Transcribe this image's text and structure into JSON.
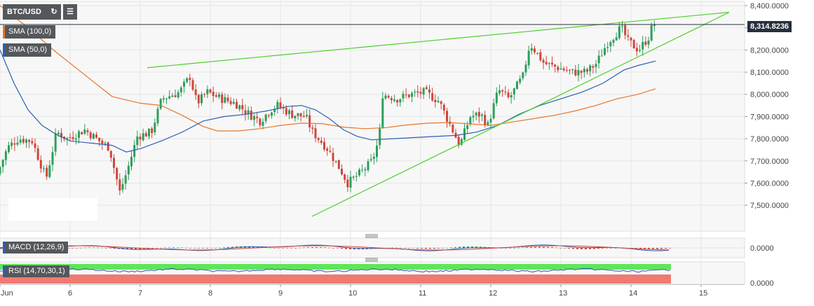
{
  "toolbar": {
    "symbol": "BTC/USD",
    "refresh_icon": "refresh-icon",
    "bars_icon": "indicator-bars-icon"
  },
  "legend": {
    "sma100": {
      "label": "SMA (100,0)",
      "color": "#e8762b"
    },
    "sma50": {
      "label": "SMA (50,0)",
      "color": "#2c5fb3"
    }
  },
  "price_tag": "8,314.8236",
  "macd_label": "MACD (12,26,9)",
  "rsi_label": "RSI (14,70,30,1)",
  "colors": {
    "bull": "#2e9e5b",
    "bear": "#d0463c",
    "trend": "#4ccf2a",
    "macd": "#2c5fb3",
    "signal": "#d0463c"
  },
  "chart_data": [
    {
      "type": "candlestick",
      "x_ticks": [
        "Jun",
        "6",
        "7",
        "8",
        "9",
        "10",
        "11",
        "12",
        "13",
        "14",
        "15"
      ],
      "x_range": [
        5.0,
        15.3
      ],
      "y_ticks": [
        "8,400.0000",
        "8,300.0000",
        "8,200.0000",
        "8,100.0000",
        "8,000.0000",
        "7,900.0000",
        "7,800.0000",
        "7,700.0000",
        "7,600.0000",
        "7,500.0000"
      ],
      "ylim": [
        7450,
        8400
      ],
      "last_price": 8314.8236,
      "price_anchors": [
        [
          5.0,
          7640
        ],
        [
          5.15,
          7760
        ],
        [
          5.3,
          7800
        ],
        [
          5.5,
          7790
        ],
        [
          5.7,
          7620
        ],
        [
          5.85,
          7830
        ],
        [
          6.0,
          7800
        ],
        [
          6.25,
          7840
        ],
        [
          6.5,
          7780
        ],
        [
          6.6,
          7760
        ],
        [
          6.75,
          7560
        ],
        [
          6.85,
          7650
        ],
        [
          7.0,
          7810
        ],
        [
          7.2,
          7830
        ],
        [
          7.35,
          7980
        ],
        [
          7.6,
          8010
        ],
        [
          7.75,
          8080
        ],
        [
          7.85,
          7960
        ],
        [
          8.0,
          8010
        ],
        [
          8.2,
          7980
        ],
        [
          8.4,
          7960
        ],
        [
          8.6,
          7910
        ],
        [
          8.75,
          7880
        ],
        [
          8.9,
          7930
        ],
        [
          9.0,
          7950
        ],
        [
          9.2,
          7910
        ],
        [
          9.4,
          7900
        ],
        [
          9.5,
          7830
        ],
        [
          9.7,
          7760
        ],
        [
          9.9,
          7660
        ],
        [
          10.0,
          7600
        ],
        [
          10.2,
          7650
        ],
        [
          10.35,
          7700
        ],
        [
          10.45,
          7800
        ],
        [
          10.5,
          8000
        ],
        [
          10.7,
          7980
        ],
        [
          10.9,
          8000
        ],
        [
          11.1,
          8010
        ],
        [
          11.3,
          7970
        ],
        [
          11.45,
          7870
        ],
        [
          11.6,
          7770
        ],
        [
          11.75,
          7900
        ],
        [
          11.9,
          7910
        ],
        [
          12.0,
          7860
        ],
        [
          12.15,
          8020
        ],
        [
          12.3,
          7980
        ],
        [
          12.5,
          8080
        ],
        [
          12.6,
          8230
        ],
        [
          12.8,
          8140
        ],
        [
          13.0,
          8120
        ],
        [
          13.2,
          8100
        ],
        [
          13.4,
          8100
        ],
        [
          13.55,
          8140
        ],
        [
          13.7,
          8230
        ],
        [
          13.9,
          8300
        ],
        [
          14.0,
          8240
        ],
        [
          14.15,
          8200
        ],
        [
          14.3,
          8260
        ],
        [
          14.35,
          8315
        ]
      ],
      "sma50_anchors": [
        [
          5.0,
          8200
        ],
        [
          5.2,
          8050
        ],
        [
          5.4,
          7930
        ],
        [
          5.6,
          7860
        ],
        [
          5.8,
          7820
        ],
        [
          6.0,
          7790
        ],
        [
          6.3,
          7780
        ],
        [
          6.6,
          7770
        ],
        [
          6.8,
          7740
        ],
        [
          7.0,
          7755
        ],
        [
          7.3,
          7790
        ],
        [
          7.6,
          7830
        ],
        [
          7.9,
          7880
        ],
        [
          8.2,
          7900
        ],
        [
          8.5,
          7910
        ],
        [
          8.8,
          7925
        ],
        [
          9.1,
          7945
        ],
        [
          9.3,
          7950
        ],
        [
          9.5,
          7930
        ],
        [
          9.7,
          7890
        ],
        [
          9.9,
          7840
        ],
        [
          10.1,
          7810
        ],
        [
          10.3,
          7795
        ],
        [
          10.6,
          7800
        ],
        [
          10.9,
          7805
        ],
        [
          11.2,
          7810
        ],
        [
          11.5,
          7815
        ],
        [
          11.8,
          7830
        ],
        [
          12.1,
          7860
        ],
        [
          12.4,
          7910
        ],
        [
          12.7,
          7950
        ],
        [
          13.0,
          7980
        ],
        [
          13.3,
          8010
        ],
        [
          13.6,
          8050
        ],
        [
          13.9,
          8110
        ],
        [
          14.1,
          8130
        ],
        [
          14.35,
          8150
        ]
      ],
      "sma100_anchors": [
        [
          5.0,
          8400
        ],
        [
          5.4,
          8300
        ],
        [
          5.8,
          8190
        ],
        [
          6.2,
          8090
        ],
        [
          6.6,
          7990
        ],
        [
          7.0,
          7960
        ],
        [
          7.3,
          7950
        ],
        [
          7.6,
          7905
        ],
        [
          7.9,
          7855
        ],
        [
          8.1,
          7835
        ],
        [
          8.4,
          7835
        ],
        [
          8.7,
          7845
        ],
        [
          9.0,
          7860
        ],
        [
          9.3,
          7870
        ],
        [
          9.6,
          7868
        ],
        [
          9.9,
          7852
        ],
        [
          10.2,
          7845
        ],
        [
          10.5,
          7850
        ],
        [
          10.8,
          7862
        ],
        [
          11.1,
          7870
        ],
        [
          11.4,
          7873
        ],
        [
          11.7,
          7867
        ],
        [
          12.0,
          7860
        ],
        [
          12.3,
          7875
        ],
        [
          12.6,
          7890
        ],
        [
          12.9,
          7905
        ],
        [
          13.2,
          7925
        ],
        [
          13.5,
          7950
        ],
        [
          13.8,
          7980
        ],
        [
          14.1,
          8000
        ],
        [
          14.35,
          8025
        ]
      ],
      "trendlines": [
        {
          "from": [
            7.1,
            8120
          ],
          "to": [
            15.4,
            8370
          ]
        },
        {
          "from": [
            9.45,
            7450
          ],
          "to": [
            15.4,
            8370
          ]
        }
      ],
      "horizontal_line": 8314.8236
    },
    {
      "type": "line",
      "name": "MACD (12,26,9)",
      "y_ticks": [
        "0.0000"
      ],
      "note": "oscillator near zero line"
    },
    {
      "type": "line",
      "name": "RSI (14,70,30,1)",
      "y_ticks": [
        "0.0000"
      ],
      "note": "oscillator band"
    }
  ]
}
